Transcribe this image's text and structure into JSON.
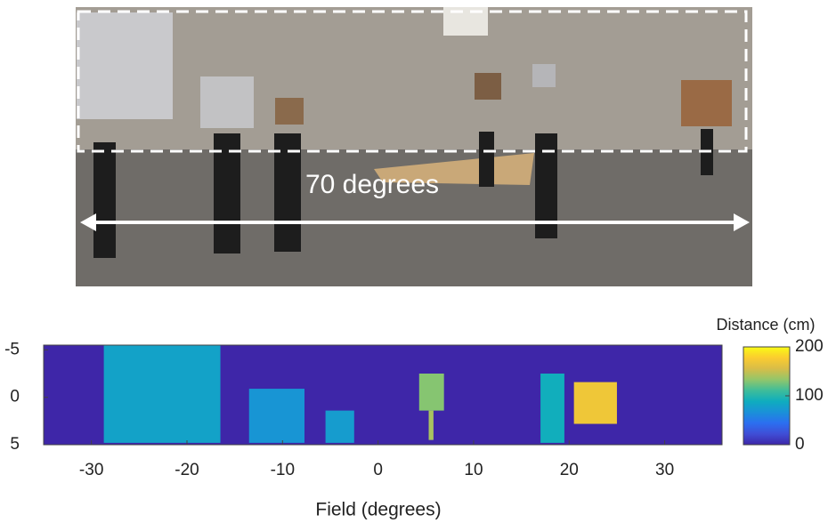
{
  "photo": {
    "annotation": "70 degrees"
  },
  "chart_data": {
    "type": "heatmap",
    "xlabel": "Field (degrees)",
    "xlim": [
      -35,
      36
    ],
    "xticks": [
      -30,
      -20,
      -10,
      0,
      10,
      20,
      30
    ],
    "ylim": [
      -5.5,
      5
    ],
    "yticks": [
      -5,
      0,
      5
    ],
    "colorbar": {
      "label": "Distance (cm)",
      "lim": [
        0,
        200
      ],
      "ticks": [
        0,
        100,
        200
      ]
    },
    "regions": [
      {
        "x": [
          -28.7,
          -16.5
        ],
        "y": [
          -5.5,
          4.8
        ],
        "value": 80
      },
      {
        "x": [
          -13.5,
          -7.7
        ],
        "y": [
          -0.9,
          4.8
        ],
        "value": 70
      },
      {
        "x": [
          -5.5,
          -2.5
        ],
        "y": [
          1.4,
          4.8
        ],
        "value": 75
      },
      {
        "x": [
          4.3,
          6.9
        ],
        "y": [
          -2.5,
          1.4
        ],
        "value": 130
      },
      {
        "x": [
          5.3,
          5.8
        ],
        "y": [
          1.4,
          4.5
        ],
        "value": 140
      },
      {
        "x": [
          17,
          19.5
        ],
        "y": [
          -2.5,
          4.8
        ],
        "value": 90
      },
      {
        "x": [
          20.5,
          25
        ],
        "y": [
          -1.6,
          2.8
        ],
        "value": 170
      }
    ]
  }
}
